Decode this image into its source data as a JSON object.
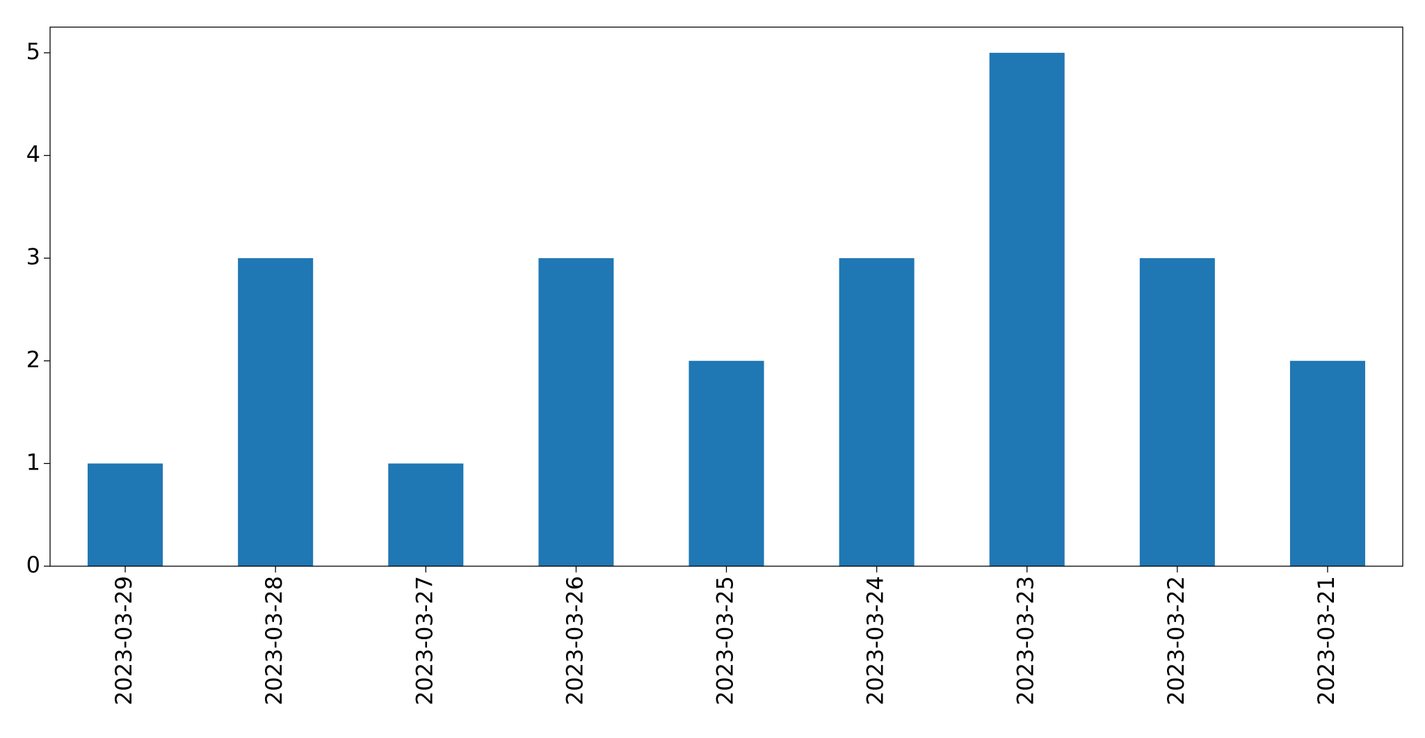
{
  "chart_data": {
    "type": "bar",
    "categories": [
      "2023-03-29",
      "2023-03-28",
      "2023-03-27",
      "2023-03-26",
      "2023-03-25",
      "2023-03-24",
      "2023-03-23",
      "2023-03-22",
      "2023-03-21"
    ],
    "values": [
      1,
      3,
      1,
      3,
      2,
      3,
      5,
      3,
      2
    ],
    "color": "#1f77b4",
    "ylim": [
      0,
      5.25
    ],
    "yticks": [
      0,
      1,
      2,
      3,
      4,
      5
    ],
    "grid": false
  }
}
